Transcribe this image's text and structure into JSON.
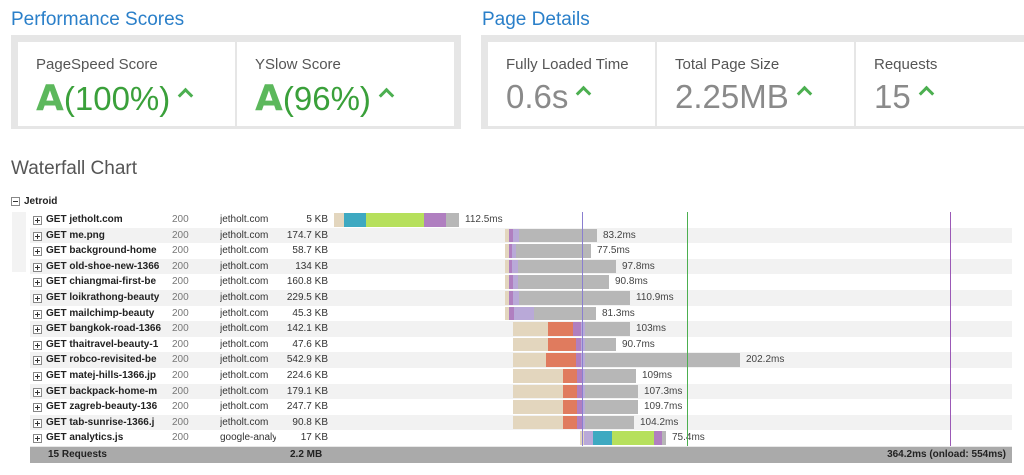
{
  "performance": {
    "title": "Performance Scores",
    "pagespeed": {
      "label": "PageSpeed Score",
      "grade": "A",
      "value": "(100%)"
    },
    "yslow": {
      "label": "YSlow Score",
      "grade": "A",
      "value": "(96%)"
    }
  },
  "details": {
    "title": "Page Details",
    "loaded": {
      "label": "Fully Loaded Time",
      "value": "0.6s"
    },
    "size": {
      "label": "Total Page Size",
      "value": "2.25MB"
    },
    "requests": {
      "label": "Requests",
      "value": "15"
    }
  },
  "waterfall": {
    "title": "Waterfall Chart",
    "group": "Jetroid",
    "colors": {
      "blocking": "#e3d6be",
      "dns": "#3ea9c1",
      "connect": "#e07b5e",
      "send": "#b07fc0",
      "wait": "#b9a9d8",
      "receive": "#b6e05c",
      "content": "#b7b7b7"
    },
    "rows": [
      {
        "url": "GET jetholt.com",
        "status": "200",
        "domain": "jetholt.com",
        "size": "5 KB",
        "duration": "112.5ms"
      },
      {
        "url": "GET me.png",
        "status": "200",
        "domain": "jetholt.com",
        "size": "174.7 KB",
        "duration": "83.2ms"
      },
      {
        "url": "GET background-home",
        "status": "200",
        "domain": "jetholt.com",
        "size": "58.7 KB",
        "duration": "77.5ms"
      },
      {
        "url": "GET old-shoe-new-1366",
        "status": "200",
        "domain": "jetholt.com",
        "size": "134 KB",
        "duration": "97.8ms"
      },
      {
        "url": "GET chiangmai-first-be",
        "status": "200",
        "domain": "jetholt.com",
        "size": "160.8 KB",
        "duration": "90.8ms"
      },
      {
        "url": "GET loikrathong-beauty",
        "status": "200",
        "domain": "jetholt.com",
        "size": "229.5 KB",
        "duration": "110.9ms"
      },
      {
        "url": "GET mailchimp-beauty",
        "status": "200",
        "domain": "jetholt.com",
        "size": "45.3 KB",
        "duration": "81.3ms"
      },
      {
        "url": "GET bangkok-road-1366",
        "status": "200",
        "domain": "jetholt.com",
        "size": "142.1 KB",
        "duration": "103ms"
      },
      {
        "url": "GET thaitravel-beauty-1",
        "status": "200",
        "domain": "jetholt.com",
        "size": "47.6 KB",
        "duration": "90.7ms"
      },
      {
        "url": "GET robco-revisited-be",
        "status": "200",
        "domain": "jetholt.com",
        "size": "542.9 KB",
        "duration": "202.2ms"
      },
      {
        "url": "GET matej-hills-1366.jp",
        "status": "200",
        "domain": "jetholt.com",
        "size": "224.6 KB",
        "duration": "109ms"
      },
      {
        "url": "GET backpack-home-m",
        "status": "200",
        "domain": "jetholt.com",
        "size": "179.1 KB",
        "duration": "107.3ms"
      },
      {
        "url": "GET zagreb-beauty-136",
        "status": "200",
        "domain": "jetholt.com",
        "size": "247.7 KB",
        "duration": "109.7ms"
      },
      {
        "url": "GET tab-sunrise-1366.j",
        "status": "200",
        "domain": "jetholt.com",
        "size": "90.8 KB",
        "duration": "104.2ms"
      },
      {
        "url": "GET analytics.js",
        "status": "200",
        "domain": "google-analy",
        "size": "17 KB",
        "duration": "75.4ms"
      }
    ],
    "footer": {
      "requests": "15 Requests",
      "size": "2.2 MB",
      "time": "364.2ms (onload: 554ms)"
    }
  }
}
